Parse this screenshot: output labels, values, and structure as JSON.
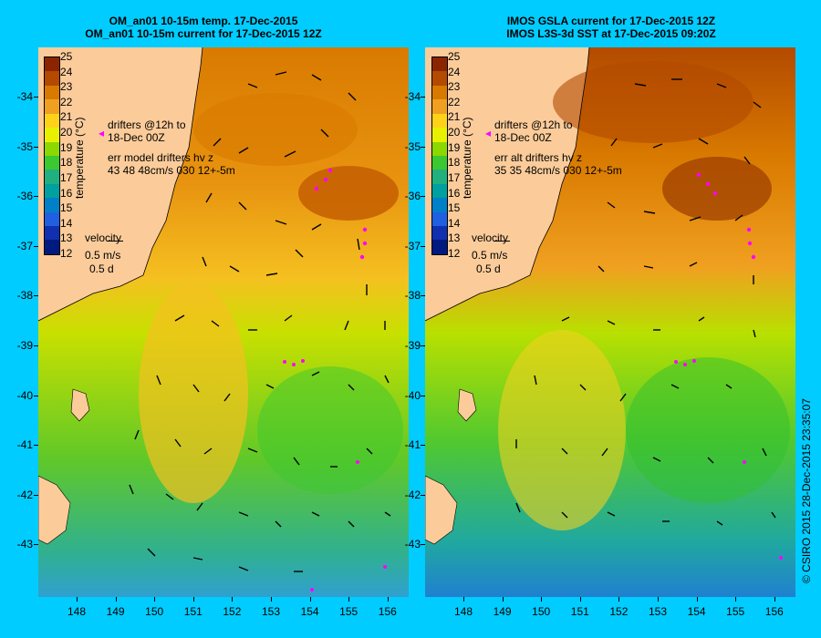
{
  "panels": [
    {
      "title_line1": "OM_an01 10-15m temp. 17-Dec-2015",
      "title_line2": "OM_an01 10-15m current for 17-Dec-2015 12Z",
      "legend_drifters_line1": "drifters @12h to",
      "legend_drifters_line2": "18-Dec 00Z",
      "legend_err_line1": "err model drifters hv z",
      "legend_err_line2": "43 48 48cm/s 030 12+-5m"
    },
    {
      "title_line1": "IMOS GSLA current for 17-Dec-2015 12Z",
      "title_line2": "IMOS L3S-3d SST at 17-Dec-2015 09:20Z",
      "legend_drifters_line1": "drifters @12h to",
      "legend_drifters_line2": "18-Dec 00Z",
      "legend_err_line1": "err alt drifters hv z",
      "legend_err_line2": "35 35 48cm/s 030 12+-5m"
    }
  ],
  "colorbar": {
    "title": "temperature (°C)",
    "labels": [
      "25",
      "24",
      "23",
      "22",
      "21",
      "20",
      "19",
      "18",
      "17",
      "16",
      "15",
      "14",
      "13",
      "12"
    ],
    "colors": [
      "#8b2500",
      "#b34a00",
      "#d97a00",
      "#f0a020",
      "#ffd21a",
      "#e8f000",
      "#8cd800",
      "#3cc830",
      "#20b080",
      "#00a0a0",
      "#0080c8",
      "#2060e0",
      "#1030b0",
      "#001a80"
    ]
  },
  "velocity_legend": {
    "label": "velocity",
    "speed": "0.5 m/s",
    "time": "0.5 d"
  },
  "y_axis_labels": [
    "-34",
    "-35",
    "-36",
    "-37",
    "-38",
    "-39",
    "-40",
    "-41",
    "-42",
    "-43"
  ],
  "x_axis_labels": [
    "148",
    "149",
    "150",
    "151",
    "152",
    "153",
    "154",
    "155",
    "156"
  ],
  "copyright": "© CSIRO 2015  28-Dec-2015 23:35:07",
  "colors": {
    "background": "#00ccff",
    "land": "#fbcc9a",
    "drifter": "#ff00ff"
  }
}
